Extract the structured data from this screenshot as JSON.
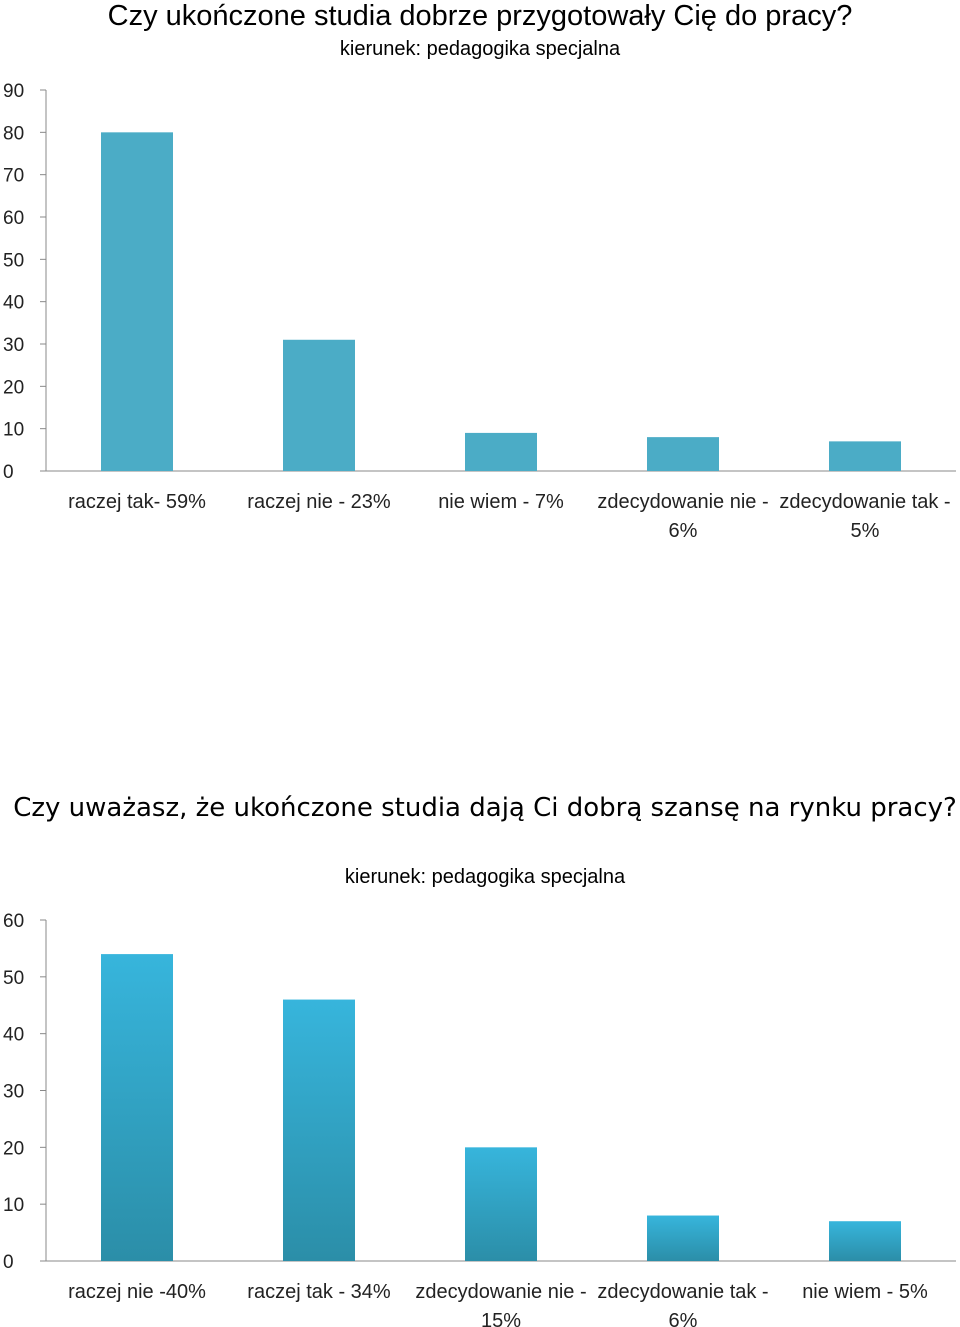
{
  "chart_data": [
    {
      "type": "bar",
      "title": "Czy ukończone studia dobrze przygotowały Cię do pracy?",
      "subtitle": "kierunek: pedagogika specjalna",
      "categories": [
        [
          "raczej tak- 59%"
        ],
        [
          "raczej nie - 23%"
        ],
        [
          "nie wiem - 7%"
        ],
        [
          "zdecydowanie nie -",
          "6%"
        ],
        [
          "zdecydowanie tak -",
          "5%"
        ]
      ],
      "values": [
        80,
        31,
        9,
        8,
        7
      ],
      "ylim": [
        0,
        90
      ],
      "yticks": [
        0,
        10,
        20,
        30,
        40,
        50,
        60,
        70,
        80,
        90
      ],
      "grid": false,
      "color": "#4bacc6"
    },
    {
      "type": "bar",
      "title": "Czy uważasz, że ukończone studia dają Ci dobrą szansę na rynku pracy?",
      "subtitle": "kierunek: pedagogika specjalna",
      "categories": [
        [
          "raczej nie -40%"
        ],
        [
          "raczej tak - 34%"
        ],
        [
          "zdecydowanie nie -",
          "15%"
        ],
        [
          "zdecydowanie tak -",
          "6%"
        ],
        [
          "nie wiem - 5%"
        ]
      ],
      "values": [
        54,
        46,
        20,
        8,
        7
      ],
      "ylim": [
        0,
        60
      ],
      "yticks": [
        0,
        10,
        20,
        30,
        40,
        50,
        60
      ],
      "grid": false,
      "color": "#31b2d8"
    }
  ]
}
